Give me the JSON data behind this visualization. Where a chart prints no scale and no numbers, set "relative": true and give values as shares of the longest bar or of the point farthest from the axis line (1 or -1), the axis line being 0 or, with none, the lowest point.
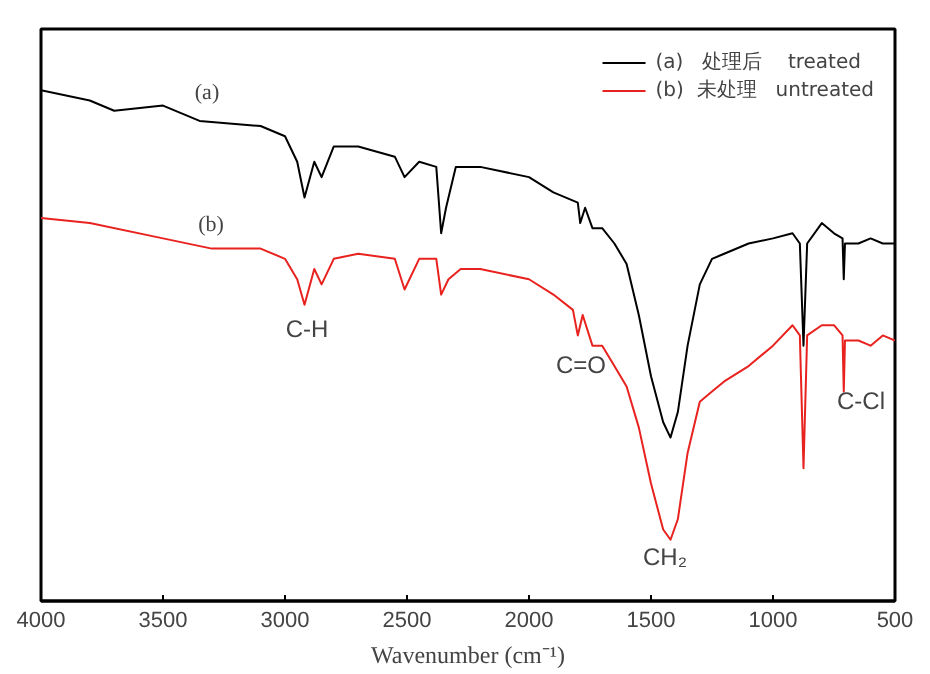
{
  "chart_data": {
    "type": "line",
    "relative": true,
    "xlabel": "Wavenumber (cm⁻¹)",
    "xlim": [
      4000,
      500
    ],
    "xticks": [
      4000,
      3500,
      3000,
      2500,
      2000,
      1500,
      1000,
      500
    ],
    "tick_labels": "x",
    "grid": false,
    "legend": "top right",
    "marker": "none",
    "line_style": "solid",
    "series": [
      {
        "name": "(a)   处理后    treated",
        "color": "#000000",
        "x": [
          4000,
          3800,
          3700,
          3500,
          3350,
          3100,
          3000,
          2950,
          2920,
          2880,
          2850,
          2800,
          2700,
          2550,
          2510,
          2450,
          2380,
          2360,
          2340,
          2300,
          2200,
          2000,
          1900,
          1800,
          1790,
          1770,
          1740,
          1700,
          1650,
          1600,
          1550,
          1500,
          1450,
          1420,
          1390,
          1350,
          1300,
          1250,
          1200,
          1100,
          1000,
          920,
          890,
          875,
          860,
          800,
          750,
          715,
          710,
          705,
          650,
          600,
          550,
          500
        ],
        "values": [
          1.0,
          0.98,
          0.96,
          0.97,
          0.94,
          0.93,
          0.91,
          0.86,
          0.79,
          0.86,
          0.83,
          0.89,
          0.89,
          0.87,
          0.83,
          0.86,
          0.85,
          0.72,
          0.77,
          0.85,
          0.85,
          0.83,
          0.8,
          0.78,
          0.74,
          0.77,
          0.73,
          0.73,
          0.7,
          0.66,
          0.56,
          0.44,
          0.35,
          0.32,
          0.37,
          0.5,
          0.62,
          0.67,
          0.68,
          0.7,
          0.71,
          0.72,
          0.7,
          0.5,
          0.7,
          0.74,
          0.72,
          0.71,
          0.63,
          0.7,
          0.7,
          0.71,
          0.7,
          0.7
        ]
      },
      {
        "name": "(b)  未处理   untreated",
        "color": "#e8221e",
        "x": [
          4000,
          3800,
          3500,
          3300,
          3100,
          3000,
          2950,
          2920,
          2880,
          2850,
          2800,
          2700,
          2550,
          2510,
          2450,
          2380,
          2360,
          2330,
          2280,
          2200,
          2000,
          1900,
          1820,
          1800,
          1780,
          1740,
          1700,
          1650,
          1600,
          1550,
          1500,
          1450,
          1420,
          1390,
          1350,
          1300,
          1250,
          1200,
          1100,
          1000,
          920,
          890,
          875,
          860,
          800,
          750,
          715,
          710,
          705,
          650,
          600,
          550,
          500
        ],
        "values": [
          0.75,
          0.74,
          0.71,
          0.69,
          0.69,
          0.67,
          0.63,
          0.58,
          0.65,
          0.62,
          0.67,
          0.68,
          0.67,
          0.61,
          0.67,
          0.67,
          0.6,
          0.63,
          0.65,
          0.65,
          0.63,
          0.6,
          0.57,
          0.52,
          0.56,
          0.5,
          0.5,
          0.46,
          0.42,
          0.34,
          0.23,
          0.14,
          0.12,
          0.16,
          0.29,
          0.39,
          0.41,
          0.43,
          0.46,
          0.5,
          0.54,
          0.52,
          0.26,
          0.52,
          0.54,
          0.54,
          0.52,
          0.41,
          0.51,
          0.51,
          0.5,
          0.52,
          0.51
        ]
      }
    ],
    "annotations": [
      "(a)",
      "(b)",
      "C-H",
      "C=O",
      "CH₂",
      "C-Cl"
    ]
  }
}
